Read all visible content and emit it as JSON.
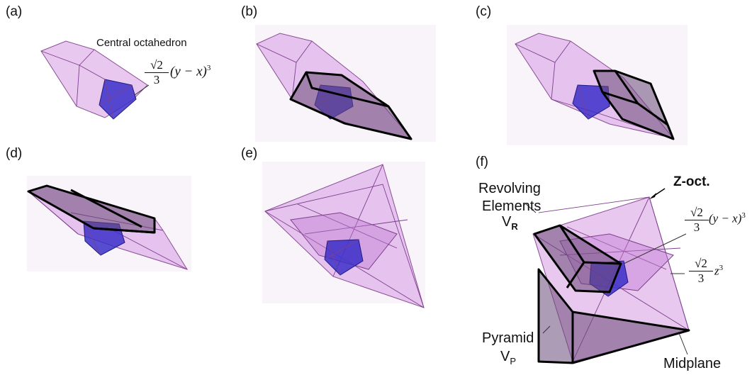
{
  "panels": [
    {
      "id": "a",
      "label": "(a)"
    },
    {
      "id": "b",
      "label": "(b)"
    },
    {
      "id": "c",
      "label": "(c)"
    },
    {
      "id": "d",
      "label": "(d)"
    },
    {
      "id": "e",
      "label": "(e)"
    },
    {
      "id": "f",
      "label": "(f)"
    }
  ],
  "annotations": {
    "central_octahedron": "Central octahedron",
    "revolving_line1": "Revolving",
    "revolving_line2": "Elements",
    "vr_main": "V",
    "vr_sub": "R",
    "z_oct": "Z-oct.",
    "pyramid": "Pyramid",
    "vp_main": "V",
    "vp_sub": "P",
    "midplane": "Midplane"
  },
  "formulas": {
    "sqrt2": "√2",
    "three": "3",
    "yx": "(y − x)",
    "cube": "3",
    "z": "z",
    "z_cube": "3"
  },
  "colors": {
    "pink_fill": "#d79be3",
    "pink_edge": "#8a4e96",
    "blue": "#3b2fc9",
    "dark": "#000000"
  }
}
